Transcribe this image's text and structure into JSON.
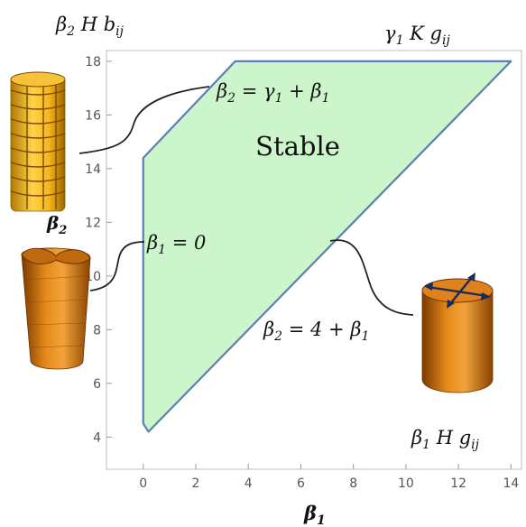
{
  "chart_data": {
    "type": "area",
    "title": "",
    "xlabel": "β",
    "xlabel_sub": "1",
    "ylabel": "",
    "xlim": [
      -1.4,
      14.4
    ],
    "ylim": [
      2.8,
      18.4
    ],
    "x_ticks": [
      0,
      2,
      4,
      6,
      8,
      10,
      12,
      14
    ],
    "y_ticks": [
      4,
      6,
      8,
      10,
      12,
      14,
      16,
      18
    ],
    "grid": false,
    "region": {
      "label": "Stable",
      "fill": "#ccf5cc",
      "stroke": "#5b7fb5",
      "boundary": [
        {
          "x": 0.0,
          "y": 14.4
        },
        {
          "x": 3.5,
          "y": 18.0
        },
        {
          "x": 14.0,
          "y": 18.0
        },
        {
          "x": 0.2,
          "y": 4.2
        },
        {
          "x": 0.0,
          "y": 4.5
        }
      ]
    },
    "annotations": {
      "corner_top_left": {
        "main": "β",
        "sub1": "2",
        "mid": " H b",
        "sub2": "ij"
      },
      "corner_top_right": {
        "main": "γ",
        "sub1": "1",
        "mid": " K g",
        "sub2": "ij"
      },
      "corner_bottom_right": {
        "main": "β",
        "sub1": "1",
        "mid": " H g",
        "sub2": "ij"
      },
      "line_upper": {
        "a": "β",
        "a_sub": "2",
        "eq": " = γ",
        "b_sub": "1",
        "rest": " + β",
        "c_sub": "1"
      },
      "line_left": {
        "a": "β",
        "a_sub": "1",
        "rest": " = 0"
      },
      "line_lower": {
        "a": "β",
        "a_sub": "2",
        "rest": " = 4 + β",
        "c_sub": "1"
      },
      "side_label": {
        "main": "β",
        "sub": "2"
      }
    }
  }
}
